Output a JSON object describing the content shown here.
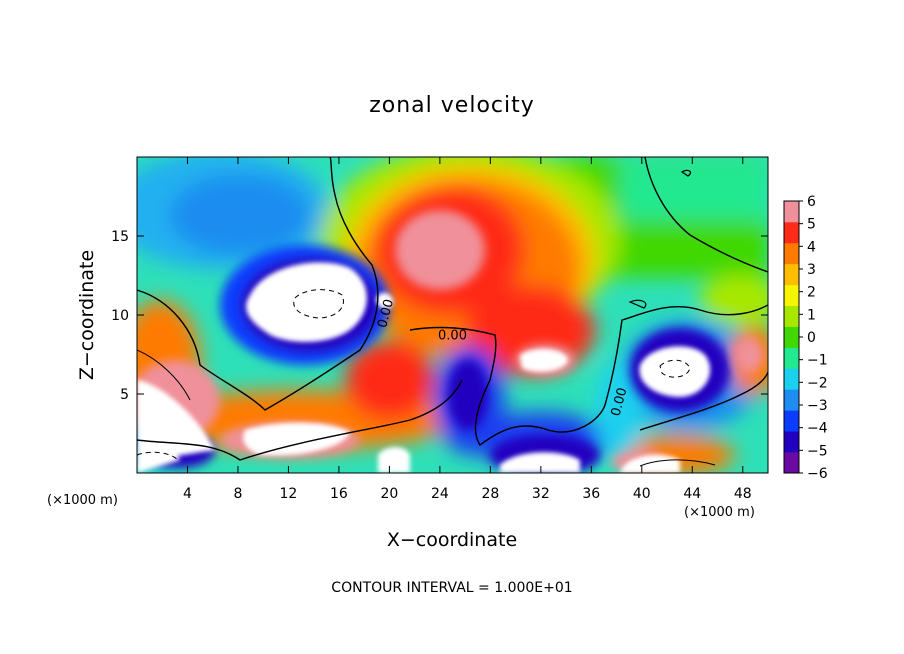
{
  "chart_data": {
    "type": "heatmap",
    "title": "zonal velocity",
    "xlabel": "X−coordinate",
    "ylabel": "Z−coordinate",
    "x_unit_label": "(×1000 m)",
    "y_unit_label": "(×1000 m)",
    "xlim": [
      0,
      50
    ],
    "ylim": [
      0,
      20
    ],
    "x_ticks": [
      4,
      8,
      12,
      16,
      20,
      24,
      28,
      32,
      36,
      40,
      44,
      48
    ],
    "x_tick_labels": [
      "4",
      "8",
      "12",
      "16",
      "20",
      "24",
      "28",
      "32",
      "36",
      "40",
      "44",
      "48"
    ],
    "y_ticks": [
      5,
      10,
      15
    ],
    "y_tick_labels": [
      "5",
      "10",
      "15"
    ],
    "footer": "CONTOUR INTERVAL = 1.000E+01",
    "colorbar": {
      "min": -6,
      "max": 6,
      "tick_values": [
        6,
        5,
        4,
        3,
        2,
        1,
        0,
        -1,
        -2,
        -3,
        -4,
        -5,
        -6
      ],
      "tick_labels": [
        "6",
        "5",
        "4",
        "3",
        "2",
        "1",
        "0",
        "−1",
        "−2",
        "−3",
        "−4",
        "−5",
        "−6"
      ],
      "colors": [
        "#6a0aa3",
        "#2200c0",
        "#0a3cff",
        "#1e8cf0",
        "#1ad0ee",
        "#22e890",
        "#40d800",
        "#a8e800",
        "#f6f600",
        "#ffbe00",
        "#ff7a00",
        "#ff2a18",
        "#f0909a"
      ]
    },
    "contour_labels": [
      {
        "text": "0.00",
        "x": 19.7,
        "z": 10.1
      },
      {
        "text": "0.00",
        "x": 25.0,
        "z": 8.7
      },
      {
        "text": "0.00",
        "x": 38.2,
        "z": 4.5
      }
    ],
    "features": [
      {
        "kind": "negative-core",
        "x": 15,
        "z": 11,
        "value": -6
      },
      {
        "kind": "positive-jet",
        "x": 25,
        "z": 14,
        "value": 5
      },
      {
        "kind": "negative-core",
        "x": 42,
        "z": 6,
        "value": -6
      },
      {
        "kind": "negative-core",
        "x": 27,
        "z": 5,
        "value": -5
      },
      {
        "kind": "positive-jet",
        "x": 12,
        "z": 1.5,
        "value": 6
      },
      {
        "kind": "positive-jet",
        "x": 2,
        "z": 3,
        "value": 6
      }
    ]
  }
}
